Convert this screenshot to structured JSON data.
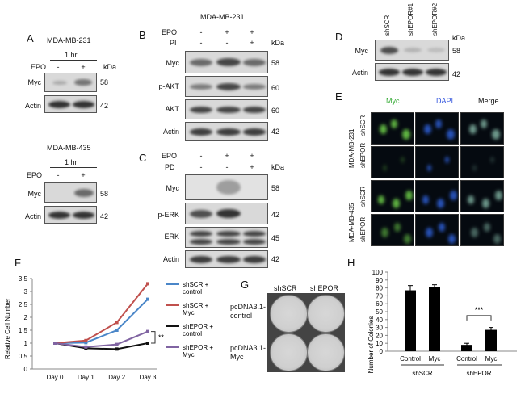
{
  "panel_A": {
    "letter": "A",
    "top": {
      "cell_line": "MDA-MB-231",
      "time": "1 hr",
      "row_label": "EPO",
      "signs": [
        "-",
        "+"
      ],
      "kda_label": "kDa",
      "blots": [
        {
          "label": "Myc",
          "kda": "58"
        },
        {
          "label": "Actin",
          "kda": "42"
        }
      ]
    },
    "bottom": {
      "cell_line": "MDA-MB-435",
      "time": "1 hr",
      "row_label": "EPO",
      "signs": [
        "-",
        "+"
      ],
      "blots": [
        {
          "label": "Myc",
          "kda": "58"
        },
        {
          "label": "Actin",
          "kda": "42"
        }
      ]
    }
  },
  "panel_B": {
    "letter": "B",
    "cell_line": "MDA-MB-231",
    "rows": [
      {
        "label": "EPO",
        "signs": [
          "-",
          "+",
          "+"
        ]
      },
      {
        "label": "PI",
        "signs": [
          "-",
          "-",
          "+"
        ]
      }
    ],
    "kda_label": "kDa",
    "blots": [
      {
        "label": "Myc",
        "kda": "58"
      },
      {
        "label": "p-AKT",
        "kda": "60"
      },
      {
        "label": "AKT",
        "kda": "60"
      },
      {
        "label": "Actin",
        "kda": "42"
      }
    ]
  },
  "panel_C": {
    "letter": "C",
    "rows": [
      {
        "label": "EPO",
        "signs": [
          "-",
          "+",
          "+"
        ]
      },
      {
        "label": "PD",
        "signs": [
          "-",
          "-",
          "+"
        ]
      }
    ],
    "kda_label": "kDa",
    "blots": [
      {
        "label": "Myc",
        "kda": "58"
      },
      {
        "label": "p-ERK",
        "kda": "42"
      },
      {
        "label": "ERK",
        "kda": "45"
      },
      {
        "label": "Actin",
        "kda": "42"
      }
    ]
  },
  "panel_D": {
    "letter": "D",
    "lanes": [
      "shSCR",
      "shEPOR#1",
      "shEPOR#2"
    ],
    "kda_label": "kDa",
    "blots": [
      {
        "label": "Myc",
        "kda": "58"
      },
      {
        "label": "Actin",
        "kda": "42"
      }
    ]
  },
  "panel_E": {
    "letter": "E",
    "columns": [
      "Myc",
      "DAPI",
      "Merge"
    ],
    "column_colors": [
      "#33aa33",
      "#3355dd",
      "#111111"
    ],
    "groups": [
      {
        "cell_line": "MDA-MB-231",
        "rows": [
          "shSCR",
          "shEPOR"
        ]
      },
      {
        "cell_line": "MDA-MB-435",
        "rows": [
          "shSCR",
          "shEPOR"
        ]
      }
    ]
  },
  "panel_F": {
    "letter": "F",
    "significance": "**"
  },
  "panel_G": {
    "letter": "G",
    "columns": [
      "shSCR",
      "shEPOR"
    ],
    "rows": [
      "pcDNA3.1-control",
      "pcDNA3.1-Myc"
    ],
    "row_lines": [
      [
        "pcDNA3.1-",
        "control"
      ],
      [
        "pcDNA3.1-",
        "Myc"
      ]
    ]
  },
  "panel_H": {
    "letter": "H",
    "significance": "***",
    "group_labels": [
      "shSCR",
      "shEPOR"
    ]
  },
  "chart_data": [
    {
      "type": "line",
      "panel": "F",
      "ylabel": "Relative Cell Number",
      "xlabel": "",
      "categories": [
        "Day 0",
        "Day 1",
        "Day 2",
        "Day 3"
      ],
      "ylim": [
        0,
        3.5
      ],
      "yticks": [
        "0",
        "0.5",
        "1",
        "1.5",
        "2",
        "2.5",
        "3",
        "3.5"
      ],
      "grid": false,
      "legend_position": "right",
      "series": [
        {
          "name": "shSCR + control",
          "legend_lines": [
            "shSCR +",
            "control"
          ],
          "color": "#4a86c8",
          "values": [
            1.0,
            1.02,
            1.5,
            2.7
          ]
        },
        {
          "name": "shSCR + Myc",
          "legend_lines": [
            "shSCR +",
            "Myc"
          ],
          "color": "#c0504d",
          "values": [
            1.0,
            1.1,
            1.8,
            3.3
          ]
        },
        {
          "name": "shEPOR + control",
          "legend_lines": [
            "shEPOR +",
            "control"
          ],
          "color": "#111111",
          "values": [
            1.0,
            0.8,
            0.77,
            1.0
          ]
        },
        {
          "name": "shEPOR + Myc",
          "legend_lines": [
            "shEPOR +",
            "Myc"
          ],
          "color": "#8064a2",
          "values": [
            1.0,
            0.85,
            0.95,
            1.45
          ]
        }
      ]
    },
    {
      "type": "bar",
      "panel": "H",
      "ylabel": "Number of Colonies",
      "xlabel": "",
      "categories": [
        "Control",
        "Myc",
        "Control",
        "Myc"
      ],
      "groups": [
        "shSCR",
        "shSCR",
        "shEPOR",
        "shEPOR"
      ],
      "values": [
        77,
        81,
        8,
        27
      ],
      "errors": [
        6,
        3,
        2,
        3
      ],
      "ylim": [
        0,
        100
      ],
      "yticks": [
        "0",
        "10",
        "20",
        "30",
        "40",
        "50",
        "60",
        "70",
        "80",
        "90",
        "100"
      ],
      "grid": false,
      "color": "#000000"
    }
  ]
}
